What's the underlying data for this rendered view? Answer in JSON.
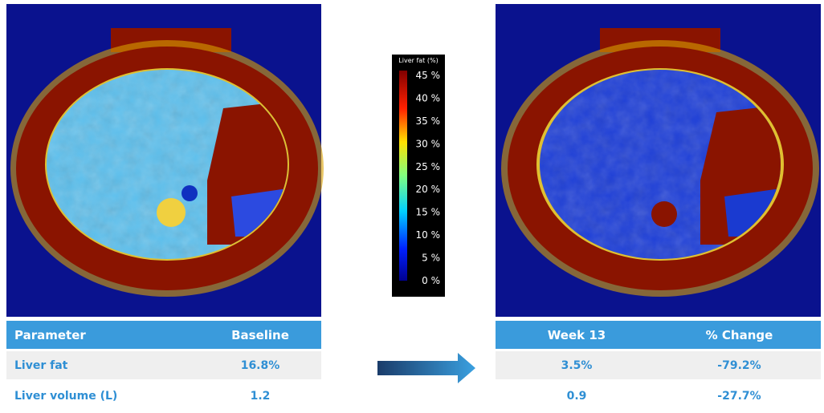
{
  "colorbar": {
    "title": "Liver fat (%)",
    "labels": [
      "45 %",
      "40 %",
      "35 %",
      "30 %",
      "25 %",
      "20 %",
      "15 %",
      "10 %",
      "5 %",
      "0 %"
    ]
  },
  "baseline_table": {
    "headers": [
      "Parameter",
      "Baseline"
    ],
    "rows": [
      [
        "Liver fat",
        "16.8%"
      ],
      [
        "Liver volume (L)",
        "1.2"
      ]
    ]
  },
  "followup_table": {
    "headers": [
      "Week 13",
      "% Change"
    ],
    "rows": [
      [
        "3.5%",
        "-79.2%"
      ],
      [
        "0.9",
        "-27.7%"
      ]
    ]
  }
}
